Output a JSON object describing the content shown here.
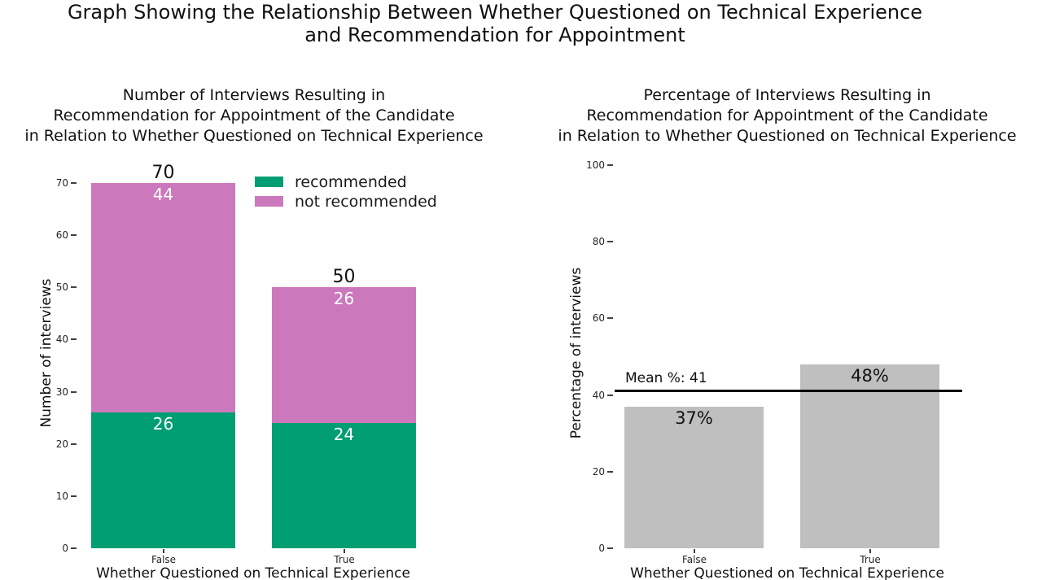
{
  "figure": {
    "title_line1": "Graph Showing the Relationship Between Whether Questioned on Technical Experience",
    "title_line2": "and Recommendation for Appointment"
  },
  "chart_data": [
    {
      "type": "bar",
      "stacked": true,
      "title_lines": [
        "Number of Interviews Resulting in",
        "Recommendation for Appointment of the Candidate",
        "in Relation to Whether Questioned on Technical Experience"
      ],
      "categories": [
        "False",
        "True"
      ],
      "series": [
        {
          "name": "recommended",
          "color": "#029e73",
          "values": [
            26,
            24
          ]
        },
        {
          "name": "not recommended",
          "color": "#cc78bc",
          "values": [
            44,
            26
          ]
        }
      ],
      "totals": [
        70,
        50
      ],
      "xlabel": "Whether Questioned on Technical Experience",
      "ylabel": "Number of interviews",
      "ylim": [
        0,
        70
      ],
      "yticks": [
        0,
        10,
        20,
        30,
        40,
        50,
        60,
        70
      ],
      "legend": {
        "location": "upper-right-inside",
        "frame": false
      }
    },
    {
      "type": "bar",
      "stacked": false,
      "title_lines": [
        "Percentage of Interviews Resulting in",
        "Recommendation for Appointment of the Candidate",
        "in Relation to Whether Questioned on Technical Experience"
      ],
      "categories": [
        "False",
        "True"
      ],
      "values": [
        37,
        48
      ],
      "value_labels": [
        "37%",
        "48%"
      ],
      "bar_color": "#bfbfbf",
      "mean_line": {
        "value": 41,
        "label": "Mean %: 41",
        "color": "#000000"
      },
      "xlabel": "Whether Questioned on Technical Experience",
      "ylabel": "Percentage of interviews",
      "ylim": [
        0,
        100
      ],
      "yticks": [
        0,
        20,
        40,
        60,
        80,
        100
      ]
    }
  ],
  "colors": {
    "recommended": "#029e73",
    "not_recommended": "#cc78bc",
    "percentage_bar": "#bfbfbf",
    "mean_line": "#000000"
  }
}
